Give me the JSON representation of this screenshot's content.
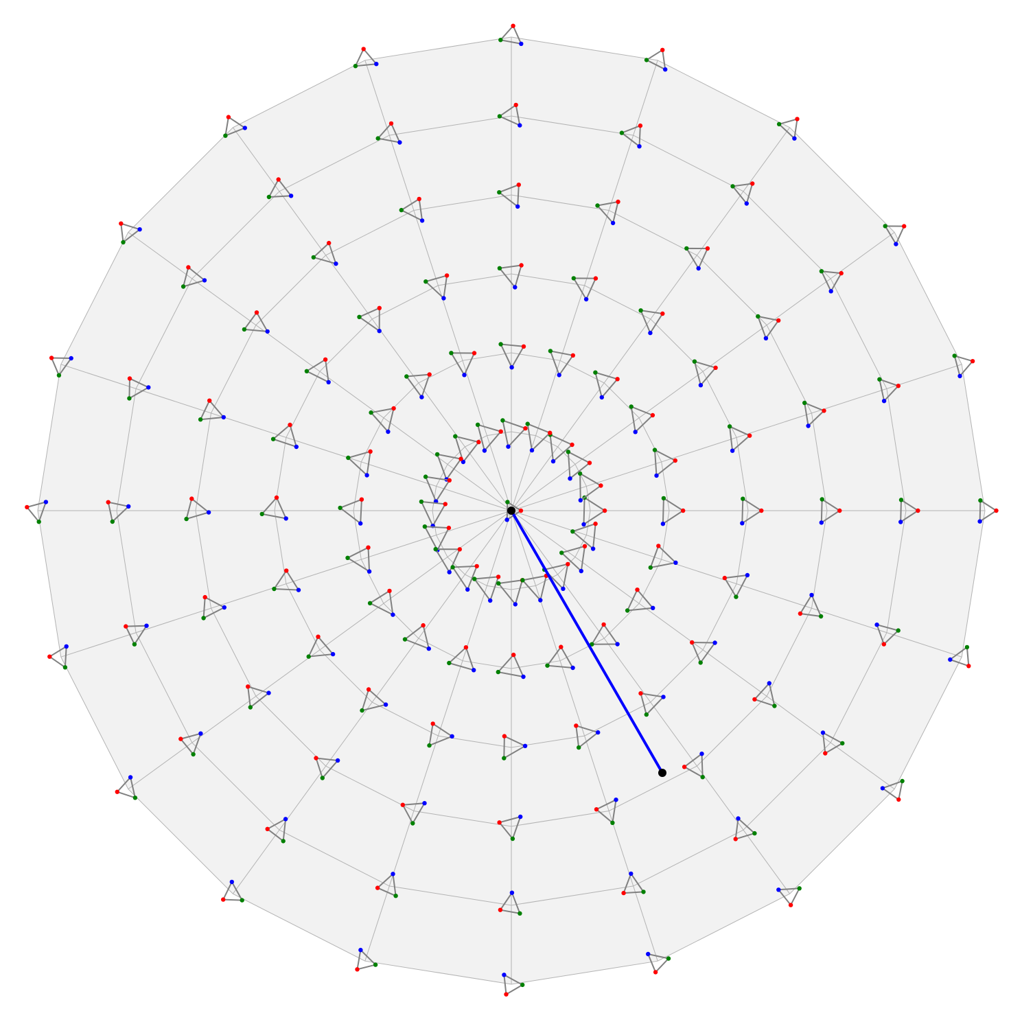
{
  "diagram": {
    "rings": 6,
    "spokes": 20,
    "colors": {
      "disk_fill": "#f2f2f2",
      "grid_line": "#b3b3b3",
      "glyph_line": "#808080",
      "vertex_a": "#ff0000",
      "vertex_b": "#008000",
      "vertex_c": "#0000ff",
      "segment": "#0000ff",
      "endpoint": "#000000"
    },
    "shapes": [
      "circle-disk",
      "triangle-glyph",
      "line-segment",
      "point"
    ]
  }
}
